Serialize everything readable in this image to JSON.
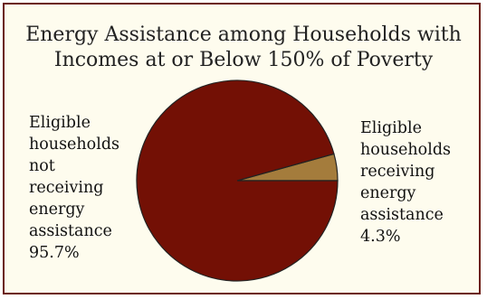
{
  "chart_data": {
    "type": "pie",
    "title_lines": [
      "Energy Assistance among Households with",
      "Incomes at or Below 150% of Poverty"
    ],
    "slices": [
      {
        "label_lines": [
          "Eligible",
          "households",
          "receiving",
          "energy",
          "assistance",
          "4.3%"
        ],
        "value": 4.3,
        "color": "#a47c3c"
      },
      {
        "label_lines": [
          "Eligible",
          "households",
          "not",
          "receiving",
          "energy",
          "assistance",
          "95.7%"
        ],
        "value": 95.7,
        "color": "#731005"
      }
    ]
  },
  "colors": {
    "background": "#fefcee",
    "border": "#6b1b10",
    "slice_outline": "#222222"
  }
}
